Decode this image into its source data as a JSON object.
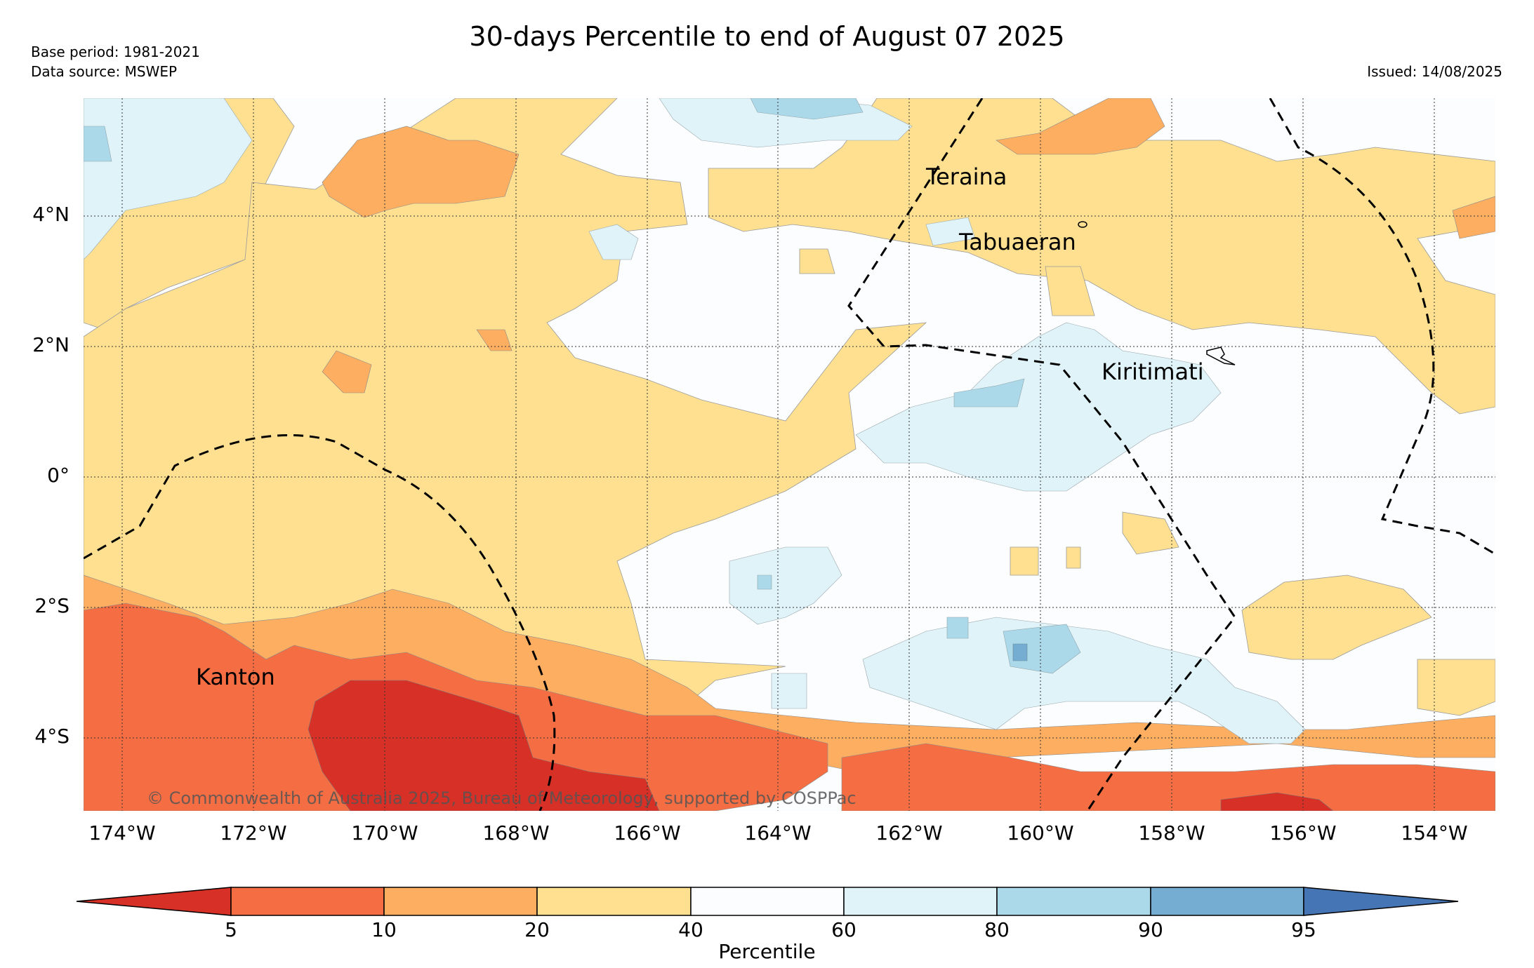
{
  "header": {
    "title": "30-days Percentile to end of August 07 2025",
    "base_period": "Base period: 1981-2021",
    "data_source": "Data source: MSWEP",
    "issued": "Issued: 14/08/2025"
  },
  "map": {
    "lon_ticks": [
      "174°W",
      "172°W",
      "170°W",
      "168°W",
      "166°W",
      "164°W",
      "162°W",
      "160°W",
      "158°W",
      "156°W",
      "154°W"
    ],
    "lat_ticks": [
      "4°N",
      "2°N",
      "0°",
      "2°S",
      "4°S"
    ],
    "places": [
      {
        "name": "Teraina"
      },
      {
        "name": "Tabuaeran"
      },
      {
        "name": "Kiritimati"
      },
      {
        "name": "Kanton"
      }
    ],
    "copyright": "© Commonwealth of Australia 2025, Bureau of Meteorology, supported by COSPPac"
  },
  "colorbar": {
    "title": "Percentile",
    "ticks": [
      "5",
      "10",
      "20",
      "40",
      "60",
      "80",
      "90",
      "95"
    ],
    "colors": {
      "below_5": "#d73027",
      "p5_10": "#f46d43",
      "p10_20": "#fdae61",
      "p20_40": "#fee090",
      "p40_60": "#fbfdfe",
      "p60_80": "#e0f3f8",
      "p80_90": "#abd9e9",
      "p90_95": "#74add1",
      "above_95": "#4575b4"
    }
  }
}
